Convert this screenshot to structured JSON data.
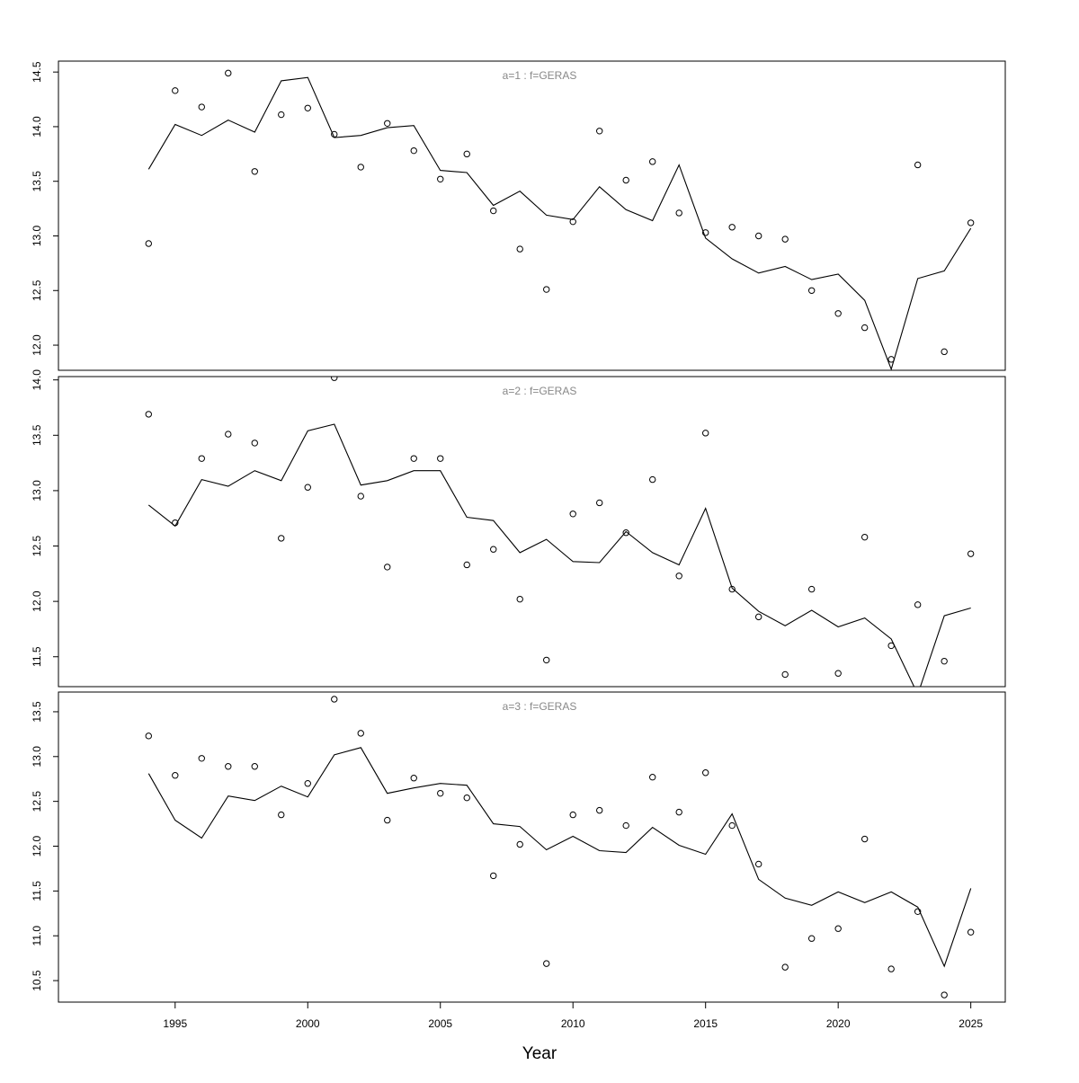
{
  "xlabel": "Year",
  "x_ticks": [
    "1995",
    "2000",
    "2005",
    "2010",
    "2015",
    "2020",
    "2025"
  ],
  "chart_data": [
    {
      "type": "line",
      "title": "a=1  :  f=GERAS",
      "xlabel": "Year",
      "ylabel": "",
      "xlim": [
        1990.6,
        2026.3
      ],
      "ylim": [
        11.77,
        14.6
      ],
      "y_ticks": [
        "12.0",
        "12.5",
        "13.0",
        "13.5",
        "14.0",
        "14.5"
      ],
      "x": [
        1994,
        1995,
        1996,
        1997,
        1998,
        1999,
        2000,
        2001,
        2002,
        2003,
        2004,
        2005,
        2006,
        2007,
        2008,
        2009,
        2010,
        2011,
        2012,
        2013,
        2014,
        2015,
        2016,
        2017,
        2018,
        2019,
        2020,
        2021,
        2022,
        2023,
        2024,
        2025
      ],
      "series": [
        {
          "kind": "line",
          "values": [
            13.61,
            14.02,
            13.92,
            14.06,
            13.95,
            14.42,
            14.45,
            13.9,
            13.92,
            13.99,
            14.01,
            13.6,
            13.58,
            13.28,
            13.41,
            13.19,
            13.15,
            13.45,
            13.24,
            13.14,
            13.65,
            12.98,
            12.79,
            12.66,
            12.72,
            12.6,
            12.65,
            12.41,
            11.78,
            12.61,
            12.68,
            13.07
          ]
        },
        {
          "kind": "points",
          "values": [
            12.93,
            14.33,
            14.18,
            14.49,
            13.59,
            14.11,
            14.17,
            13.93,
            13.63,
            14.03,
            13.78,
            13.52,
            13.75,
            13.23,
            12.88,
            12.51,
            13.13,
            13.96,
            13.51,
            13.68,
            13.21,
            13.03,
            13.08,
            13.0,
            12.97,
            12.5,
            12.29,
            12.16,
            11.87,
            13.65,
            11.94,
            13.12
          ]
        }
      ]
    },
    {
      "type": "line",
      "title": "a=2  :  f=GERAS",
      "xlabel": "Year",
      "ylabel": "",
      "xlim": [
        1990.6,
        2026.3
      ],
      "ylim": [
        11.23,
        14.03
      ],
      "y_ticks": [
        "11.5",
        "12.0",
        "12.5",
        "13.0",
        "13.5",
        "14.0"
      ],
      "x": [
        1994,
        1995,
        1996,
        1997,
        1998,
        1999,
        2000,
        2001,
        2002,
        2003,
        2004,
        2005,
        2006,
        2007,
        2008,
        2009,
        2010,
        2011,
        2012,
        2013,
        2014,
        2015,
        2016,
        2017,
        2018,
        2019,
        2020,
        2021,
        2022,
        2023,
        2024,
        2025
      ],
      "series": [
        {
          "kind": "line",
          "values": [
            12.87,
            12.68,
            13.1,
            13.04,
            13.18,
            13.09,
            13.54,
            13.6,
            13.05,
            13.09,
            13.18,
            13.18,
            12.76,
            12.73,
            12.44,
            12.56,
            12.36,
            12.35,
            12.63,
            12.44,
            12.33,
            12.84,
            12.12,
            11.91,
            11.78,
            11.92,
            11.77,
            11.85,
            11.66,
            11.16,
            11.87,
            11.94
          ]
        },
        {
          "kind": "points",
          "values": [
            13.69,
            12.71,
            13.29,
            13.51,
            13.43,
            12.57,
            13.03,
            14.02,
            12.95,
            12.31,
            13.29,
            13.29,
            12.33,
            12.47,
            12.02,
            11.47,
            12.79,
            12.89,
            12.62,
            13.1,
            12.23,
            13.52,
            12.11,
            11.86,
            11.34,
            12.11,
            11.35,
            12.58,
            11.6,
            11.97,
            11.46,
            12.43
          ]
        }
      ]
    },
    {
      "type": "line",
      "title": "a=3  :  f=GERAS",
      "xlabel": "Year",
      "ylabel": "",
      "xlim": [
        1990.6,
        2026.3
      ],
      "ylim": [
        10.26,
        13.72
      ],
      "y_ticks": [
        "10.5",
        "11.0",
        "11.5",
        "12.0",
        "12.5",
        "13.0",
        "13.5"
      ],
      "x": [
        1994,
        1995,
        1996,
        1997,
        1998,
        1999,
        2000,
        2001,
        2002,
        2003,
        2004,
        2005,
        2006,
        2007,
        2008,
        2009,
        2010,
        2011,
        2012,
        2013,
        2014,
        2015,
        2016,
        2017,
        2018,
        2019,
        2020,
        2021,
        2022,
        2023,
        2024,
        2025
      ],
      "series": [
        {
          "kind": "line",
          "values": [
            12.81,
            12.29,
            12.09,
            12.56,
            12.51,
            12.67,
            12.55,
            13.02,
            13.1,
            12.59,
            12.65,
            12.7,
            12.68,
            12.25,
            12.22,
            11.96,
            12.11,
            11.95,
            11.93,
            12.21,
            12.01,
            11.91,
            12.36,
            11.63,
            11.42,
            11.34,
            11.49,
            11.37,
            11.49,
            11.32,
            10.66,
            11.53
          ]
        },
        {
          "kind": "points",
          "values": [
            13.23,
            12.79,
            12.98,
            12.89,
            12.89,
            12.35,
            12.7,
            13.64,
            13.26,
            12.29,
            12.76,
            12.59,
            12.54,
            11.67,
            12.02,
            10.69,
            12.35,
            12.4,
            12.23,
            12.77,
            12.38,
            12.82,
            12.23,
            11.8,
            10.65,
            10.97,
            11.08,
            12.08,
            10.63,
            11.27,
            10.34,
            11.04
          ]
        }
      ]
    }
  ]
}
